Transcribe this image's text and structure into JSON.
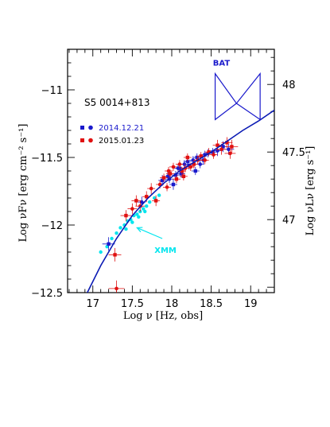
{
  "chart_data": {
    "type": "scatter",
    "title": "S5 0014+813",
    "xlabel": "Log ν  [Hz, obs]",
    "ylabel": "Log νFν  [erg cm⁻² s⁻¹]",
    "y2label": "Log νLν  [erg s⁻¹]",
    "xlim": [
      16.68,
      19.3
    ],
    "ylim": [
      -12.5,
      -10.7
    ],
    "x_ticks": [
      "17",
      "17.5",
      "18",
      "18.5",
      "19"
    ],
    "x_tick_values": [
      17,
      17.5,
      18,
      18.5,
      19
    ],
    "y_ticks": [
      "−12.5",
      "−12",
      "−11.5",
      "−11"
    ],
    "y_tick_values": [
      -12.5,
      -12,
      -11.5,
      -11
    ],
    "y2_ticks": [
      "47",
      "47.5",
      "48"
    ],
    "y2_tick_values": [
      47,
      47.5,
      48
    ],
    "colors": {
      "series_2014": "#1a1acc",
      "series_2015": "#e01010",
      "xmm": "#00e5ee",
      "model": "#0a1ab4",
      "bat": "#1a1acc"
    },
    "series": [
      {
        "name": "2014.12.21",
        "color": "#1a1acc",
        "points": [
          [
            17.2,
            -12.14,
            0.08,
            0.05
          ],
          [
            17.62,
            -11.83,
            0.05,
            0.04
          ],
          [
            17.88,
            -11.67,
            0.05,
            0.04
          ],
          [
            17.95,
            -11.64,
            0.04,
            0.03
          ],
          [
            18.02,
            -11.7,
            0.05,
            0.04
          ],
          [
            18.08,
            -11.58,
            0.05,
            0.03
          ],
          [
            18.12,
            -11.62,
            0.05,
            0.03
          ],
          [
            18.16,
            -11.55,
            0.05,
            0.03
          ],
          [
            18.22,
            -11.56,
            0.05,
            0.03
          ],
          [
            18.27,
            -11.52,
            0.05,
            0.03
          ],
          [
            18.32,
            -11.5,
            0.05,
            0.03
          ],
          [
            18.36,
            -11.55,
            0.05,
            0.03
          ],
          [
            18.42,
            -11.48,
            0.05,
            0.03
          ],
          [
            18.46,
            -11.47,
            0.05,
            0.03
          ],
          [
            18.52,
            -11.46,
            0.05,
            0.03
          ],
          [
            18.58,
            -11.45,
            0.06,
            0.04
          ],
          [
            18.65,
            -11.42,
            0.06,
            0.04
          ],
          [
            18.72,
            -11.44,
            0.07,
            0.04
          ],
          [
            18.1,
            -11.58,
            0.05,
            0.03
          ],
          [
            18.2,
            -11.53,
            0.05,
            0.03
          ],
          [
            18.05,
            -11.63,
            0.05,
            0.03
          ],
          [
            17.97,
            -11.66,
            0.05,
            0.03
          ],
          [
            18.3,
            -11.6,
            0.05,
            0.03
          ],
          [
            18.4,
            -11.52,
            0.05,
            0.03
          ]
        ]
      },
      {
        "name": "2015.01.23",
        "color": "#e01010",
        "points": [
          [
            17.28,
            -12.22,
            0.08,
            0.05
          ],
          [
            17.3,
            -12.47,
            0.1,
            0.06
          ],
          [
            17.42,
            -11.93,
            0.07,
            0.04
          ],
          [
            17.5,
            -11.88,
            0.06,
            0.04
          ],
          [
            17.55,
            -11.82,
            0.06,
            0.04
          ],
          [
            17.6,
            -11.86,
            0.06,
            0.04
          ],
          [
            17.68,
            -11.79,
            0.05,
            0.04
          ],
          [
            17.74,
            -11.73,
            0.05,
            0.04
          ],
          [
            17.8,
            -11.82,
            0.05,
            0.04
          ],
          [
            17.85,
            -11.7,
            0.05,
            0.03
          ],
          [
            17.9,
            -11.65,
            0.05,
            0.03
          ],
          [
            17.94,
            -11.72,
            0.05,
            0.03
          ],
          [
            17.98,
            -11.62,
            0.05,
            0.03
          ],
          [
            18.02,
            -11.57,
            0.05,
            0.03
          ],
          [
            18.06,
            -11.66,
            0.05,
            0.03
          ],
          [
            18.1,
            -11.55,
            0.05,
            0.03
          ],
          [
            18.13,
            -11.6,
            0.05,
            0.03
          ],
          [
            18.17,
            -11.58,
            0.05,
            0.03
          ],
          [
            18.2,
            -11.5,
            0.05,
            0.03
          ],
          [
            18.24,
            -11.57,
            0.05,
            0.03
          ],
          [
            18.28,
            -11.55,
            0.05,
            0.03
          ],
          [
            18.33,
            -11.52,
            0.05,
            0.03
          ],
          [
            18.37,
            -11.49,
            0.05,
            0.03
          ],
          [
            18.42,
            -11.52,
            0.05,
            0.03
          ],
          [
            18.47,
            -11.46,
            0.05,
            0.03
          ],
          [
            18.53,
            -11.48,
            0.05,
            0.03
          ],
          [
            18.58,
            -11.41,
            0.06,
            0.04
          ],
          [
            18.63,
            -11.44,
            0.06,
            0.04
          ],
          [
            18.7,
            -11.39,
            0.07,
            0.04
          ],
          [
            18.74,
            -11.47,
            0.07,
            0.04
          ],
          [
            18.76,
            -11.42,
            0.08,
            0.05
          ],
          [
            17.96,
            -11.6,
            0.05,
            0.03
          ],
          [
            18.15,
            -11.64,
            0.05,
            0.03
          ]
        ]
      },
      {
        "name": "XMM",
        "color": "#00e5ee",
        "points": [
          [
            17.1,
            -12.2
          ],
          [
            17.18,
            -12.16
          ],
          [
            17.24,
            -12.1
          ],
          [
            17.3,
            -12.06
          ],
          [
            17.35,
            -12.02
          ],
          [
            17.4,
            -12.0
          ],
          [
            17.44,
            -11.97
          ],
          [
            17.48,
            -11.96
          ],
          [
            17.52,
            -11.93
          ],
          [
            17.56,
            -11.92
          ],
          [
            17.6,
            -11.9
          ],
          [
            17.64,
            -11.88
          ],
          [
            17.68,
            -11.86
          ],
          [
            17.72,
            -11.83
          ],
          [
            17.78,
            -11.8
          ],
          [
            17.84,
            -11.78
          ],
          [
            17.42,
            -12.03
          ],
          [
            17.5,
            -11.98
          ],
          [
            17.58,
            -11.94
          ],
          [
            17.66,
            -11.9
          ]
        ]
      }
    ],
    "model_curve": [
      [
        16.93,
        -12.5
      ],
      [
        17.1,
        -12.3
      ],
      [
        17.3,
        -12.1
      ],
      [
        17.5,
        -11.93
      ],
      [
        17.7,
        -11.8
      ],
      [
        17.9,
        -11.69
      ],
      [
        18.1,
        -11.6
      ],
      [
        18.3,
        -11.53
      ],
      [
        18.5,
        -11.46
      ],
      [
        18.7,
        -11.38
      ],
      [
        18.9,
        -11.3
      ],
      [
        19.1,
        -11.23
      ],
      [
        19.3,
        -11.15
      ]
    ],
    "bat_bowtie": {
      "x_range": [
        18.55,
        19.12
      ],
      "pivot_x": 18.82,
      "pivot_y": -11.1,
      "left": [
        -10.88,
        -11.22
      ],
      "right": [
        -10.88,
        -11.22
      ]
    },
    "legend": [
      {
        "label": "2014.12.21",
        "color": "#1a1acc"
      },
      {
        "label": "2015.01.23",
        "color": "#e01010"
      }
    ],
    "annotations": {
      "xmm_label": "XMM",
      "xmm_arrow_from": [
        17.88,
        -12.1
      ],
      "xmm_arrow_to": [
        17.56,
        -12.02
      ],
      "bat_label": "BAT",
      "bat_label_at": [
        18.63,
        -10.82
      ]
    }
  }
}
